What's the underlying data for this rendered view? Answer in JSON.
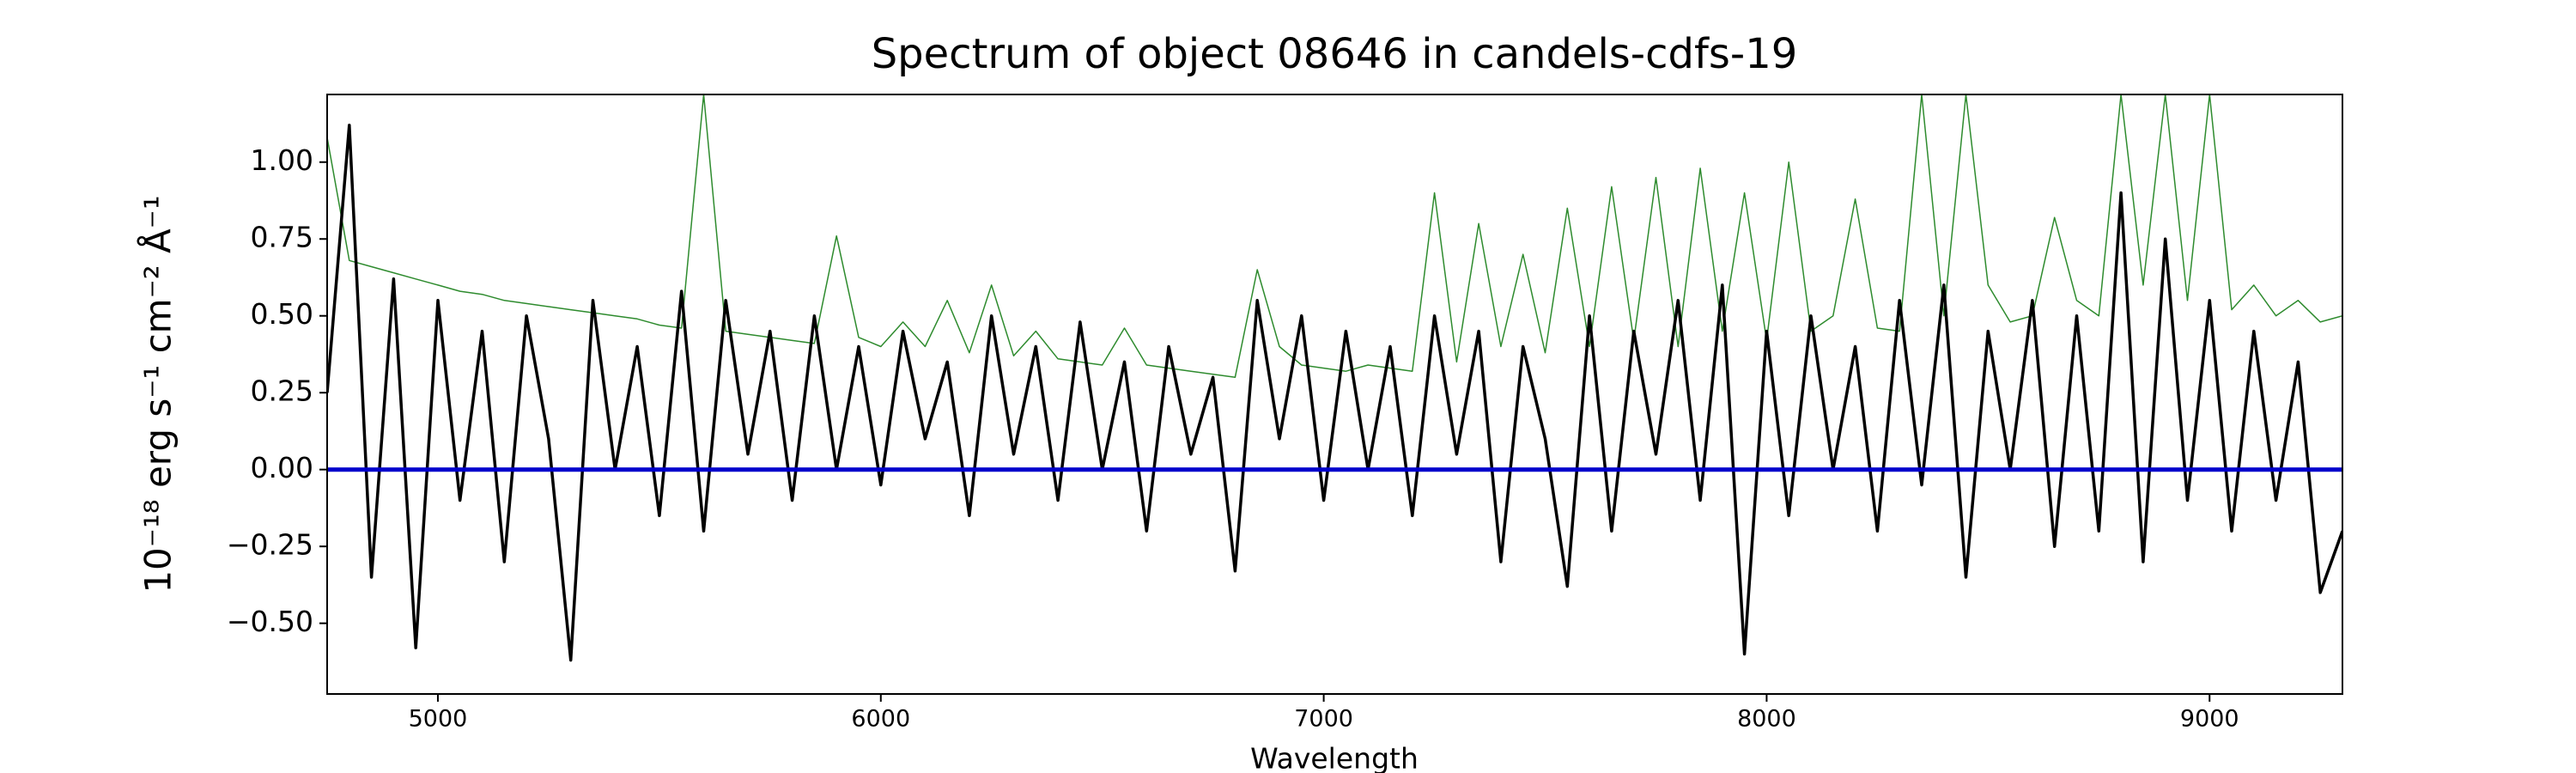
{
  "chart_data": {
    "type": "line",
    "title": "Spectrum of object 08646 in candels-cdfs-19",
    "x_label": "Wavelength",
    "y_label": "10⁻¹⁸ erg s⁻¹ cm⁻² Å⁻¹",
    "x": [
      4750,
      4800,
      4850,
      4900,
      4950,
      5000,
      5050,
      5100,
      5150,
      5200,
      5250,
      5300,
      5350,
      5400,
      5450,
      5500,
      5550,
      5600,
      5650,
      5700,
      5750,
      5800,
      5850,
      5900,
      5950,
      6000,
      6050,
      6100,
      6150,
      6200,
      6250,
      6300,
      6350,
      6400,
      6450,
      6500,
      6550,
      6600,
      6650,
      6700,
      6750,
      6800,
      6850,
      6900,
      6950,
      7000,
      7050,
      7100,
      7150,
      7200,
      7250,
      7300,
      7350,
      7400,
      7450,
      7500,
      7550,
      7600,
      7650,
      7700,
      7750,
      7800,
      7850,
      7900,
      7950,
      8000,
      8050,
      8100,
      8150,
      8200,
      8250,
      8300,
      8350,
      8400,
      8450,
      8500,
      8550,
      8600,
      8650,
      8700,
      8750,
      8800,
      8850,
      8900,
      8950,
      9000,
      9050,
      9100,
      9150,
      9200,
      9250,
      9300
    ],
    "series": [
      {
        "color": "#2e8b2e",
        "width": 1.5,
        "values": [
          1.08,
          0.68,
          0.66,
          0.64,
          0.62,
          0.6,
          0.58,
          0.57,
          0.55,
          0.54,
          0.53,
          0.52,
          0.51,
          0.5,
          0.49,
          0.47,
          0.46,
          1.22,
          0.45,
          0.44,
          0.43,
          0.42,
          0.41,
          0.76,
          0.43,
          0.4,
          0.48,
          0.4,
          0.55,
          0.38,
          0.6,
          0.37,
          0.45,
          0.36,
          0.35,
          0.34,
          0.46,
          0.34,
          0.33,
          0.32,
          0.31,
          0.3,
          0.65,
          0.4,
          0.34,
          0.33,
          0.32,
          0.34,
          0.33,
          0.32,
          0.9,
          0.35,
          0.8,
          0.4,
          0.7,
          0.38,
          0.85,
          0.4,
          0.92,
          0.42,
          0.95,
          0.4,
          0.98,
          0.45,
          0.9,
          0.42,
          1.0,
          0.45,
          0.5,
          0.88,
          0.46,
          0.45,
          1.22,
          0.5,
          1.22,
          0.6,
          0.48,
          0.5,
          0.82,
          0.55,
          0.5,
          1.22,
          0.6,
          1.22,
          0.55,
          1.22,
          0.52,
          0.6,
          0.5,
          0.55,
          0.48,
          0.5
        ]
      },
      {
        "color": "#000000",
        "width": 3.5,
        "values": [
          0.25,
          1.12,
          -0.35,
          0.62,
          -0.58,
          0.55,
          -0.1,
          0.45,
          -0.3,
          0.5,
          0.1,
          -0.62,
          0.55,
          0.0,
          0.4,
          -0.15,
          0.58,
          -0.2,
          0.55,
          0.05,
          0.45,
          -0.1,
          0.5,
          0.0,
          0.4,
          -0.05,
          0.45,
          0.1,
          0.35,
          -0.15,
          0.5,
          0.05,
          0.4,
          -0.1,
          0.48,
          0.0,
          0.35,
          -0.2,
          0.4,
          0.05,
          0.3,
          -0.33,
          0.55,
          0.1,
          0.5,
          -0.1,
          0.45,
          0.0,
          0.4,
          -0.15,
          0.5,
          0.05,
          0.45,
          -0.3,
          0.4,
          0.1,
          -0.38,
          0.5,
          -0.2,
          0.45,
          0.05,
          0.55,
          -0.1,
          0.6,
          -0.6,
          0.45,
          -0.15,
          0.5,
          0.0,
          0.4,
          -0.2,
          0.55,
          -0.05,
          0.6,
          -0.35,
          0.45,
          0.0,
          0.55,
          -0.25,
          0.5,
          -0.2,
          0.9,
          -0.3,
          0.75,
          -0.1,
          0.55,
          -0.2,
          0.45,
          -0.1,
          0.35,
          -0.4,
          -0.2
        ]
      },
      {
        "color": "#0000cc",
        "width": 5,
        "x": [
          4750,
          9300
        ],
        "values": [
          0,
          0
        ]
      }
    ],
    "xlim": [
      4750,
      9300
    ],
    "ylim": [
      -0.73,
      1.22
    ],
    "xticks": [
      5000,
      6000,
      7000,
      8000,
      9000
    ],
    "yticks": [
      {
        "value": -0.5,
        "label": "−0.50"
      },
      {
        "value": -0.25,
        "label": "−0.25"
      },
      {
        "value": 0,
        "label": "0.00"
      },
      {
        "value": 0.25,
        "label": "0.25"
      },
      {
        "value": 0.5,
        "label": "0.50"
      },
      {
        "value": 0.75,
        "label": "0.75"
      },
      {
        "value": 1.0,
        "label": "1.00"
      }
    ],
    "grid": false
  }
}
